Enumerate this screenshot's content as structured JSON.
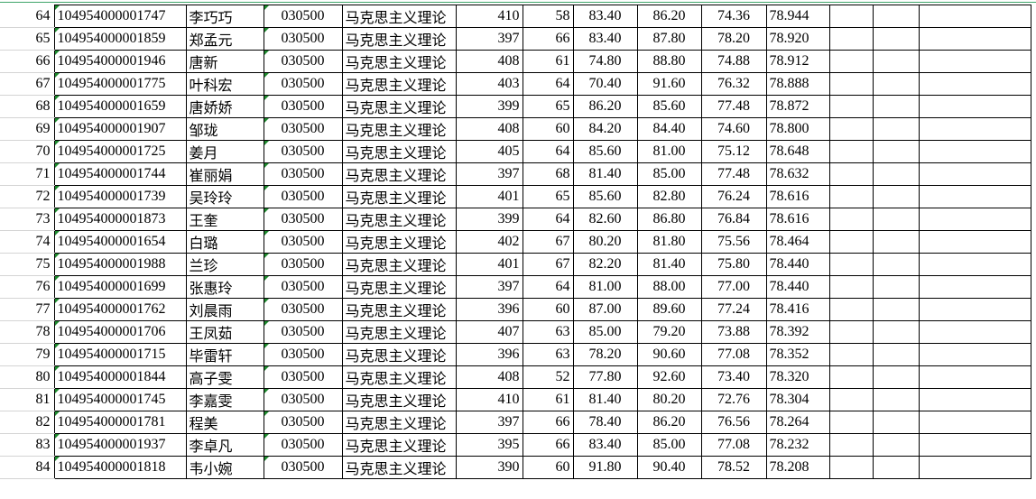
{
  "sheet": {
    "major_code": "030500",
    "major_name": "马克思主义理论",
    "rows": [
      [
        "64",
        "104954000001747",
        "李巧巧",
        "410",
        "58",
        "83.40",
        "86.20",
        "74.36",
        "78.944"
      ],
      [
        "65",
        "104954000001859",
        "郑孟元",
        "397",
        "66",
        "83.40",
        "87.80",
        "78.20",
        "78.920"
      ],
      [
        "66",
        "104954000001946",
        "唐新",
        "408",
        "61",
        "74.80",
        "88.80",
        "74.88",
        "78.912"
      ],
      [
        "67",
        "104954000001775",
        "叶科宏",
        "403",
        "64",
        "70.40",
        "91.60",
        "76.32",
        "78.888"
      ],
      [
        "68",
        "104954000001659",
        "唐娇娇",
        "399",
        "65",
        "86.20",
        "85.60",
        "77.48",
        "78.872"
      ],
      [
        "69",
        "104954000001907",
        "邹珑",
        "408",
        "60",
        "84.20",
        "84.40",
        "74.60",
        "78.800"
      ],
      [
        "70",
        "104954000001725",
        "姜月",
        "405",
        "64",
        "85.60",
        "81.00",
        "75.12",
        "78.648"
      ],
      [
        "71",
        "104954000001744",
        "崔丽娟",
        "397",
        "68",
        "81.40",
        "85.00",
        "77.48",
        "78.632"
      ],
      [
        "72",
        "104954000001739",
        "吴玲玲",
        "401",
        "65",
        "85.60",
        "82.80",
        "76.24",
        "78.616"
      ],
      [
        "73",
        "104954000001873",
        "王奎",
        "399",
        "64",
        "82.60",
        "86.80",
        "76.84",
        "78.616"
      ],
      [
        "74",
        "104954000001654",
        "白璐",
        "402",
        "67",
        "80.20",
        "81.80",
        "75.56",
        "78.464"
      ],
      [
        "75",
        "104954000001988",
        "兰珍",
        "401",
        "67",
        "82.20",
        "81.40",
        "75.80",
        "78.440"
      ],
      [
        "76",
        "104954000001699",
        "张惠玲",
        "397",
        "64",
        "81.00",
        "88.00",
        "77.00",
        "78.440"
      ],
      [
        "77",
        "104954000001762",
        "刘晨雨",
        "396",
        "60",
        "87.00",
        "89.60",
        "77.24",
        "78.416"
      ],
      [
        "78",
        "104954000001706",
        "王凤茹",
        "407",
        "63",
        "85.00",
        "79.20",
        "73.88",
        "78.392"
      ],
      [
        "79",
        "104954000001715",
        "毕雷轩",
        "396",
        "63",
        "78.20",
        "90.60",
        "77.08",
        "78.352"
      ],
      [
        "80",
        "104954000001844",
        "高子雯",
        "408",
        "52",
        "77.80",
        "92.60",
        "73.40",
        "78.320"
      ],
      [
        "81",
        "104954000001745",
        "李嘉雯",
        "410",
        "61",
        "81.40",
        "80.20",
        "72.76",
        "78.304"
      ],
      [
        "82",
        "104954000001781",
        "程美",
        "397",
        "66",
        "78.40",
        "86.20",
        "76.56",
        "78.264"
      ],
      [
        "83",
        "104954000001937",
        "李卓凡",
        "395",
        "66",
        "83.40",
        "85.00",
        "77.08",
        "78.232"
      ],
      [
        "84",
        "104954000001818",
        "韦小婉",
        "390",
        "60",
        "91.80",
        "90.40",
        "78.52",
        "78.208"
      ]
    ]
  }
}
